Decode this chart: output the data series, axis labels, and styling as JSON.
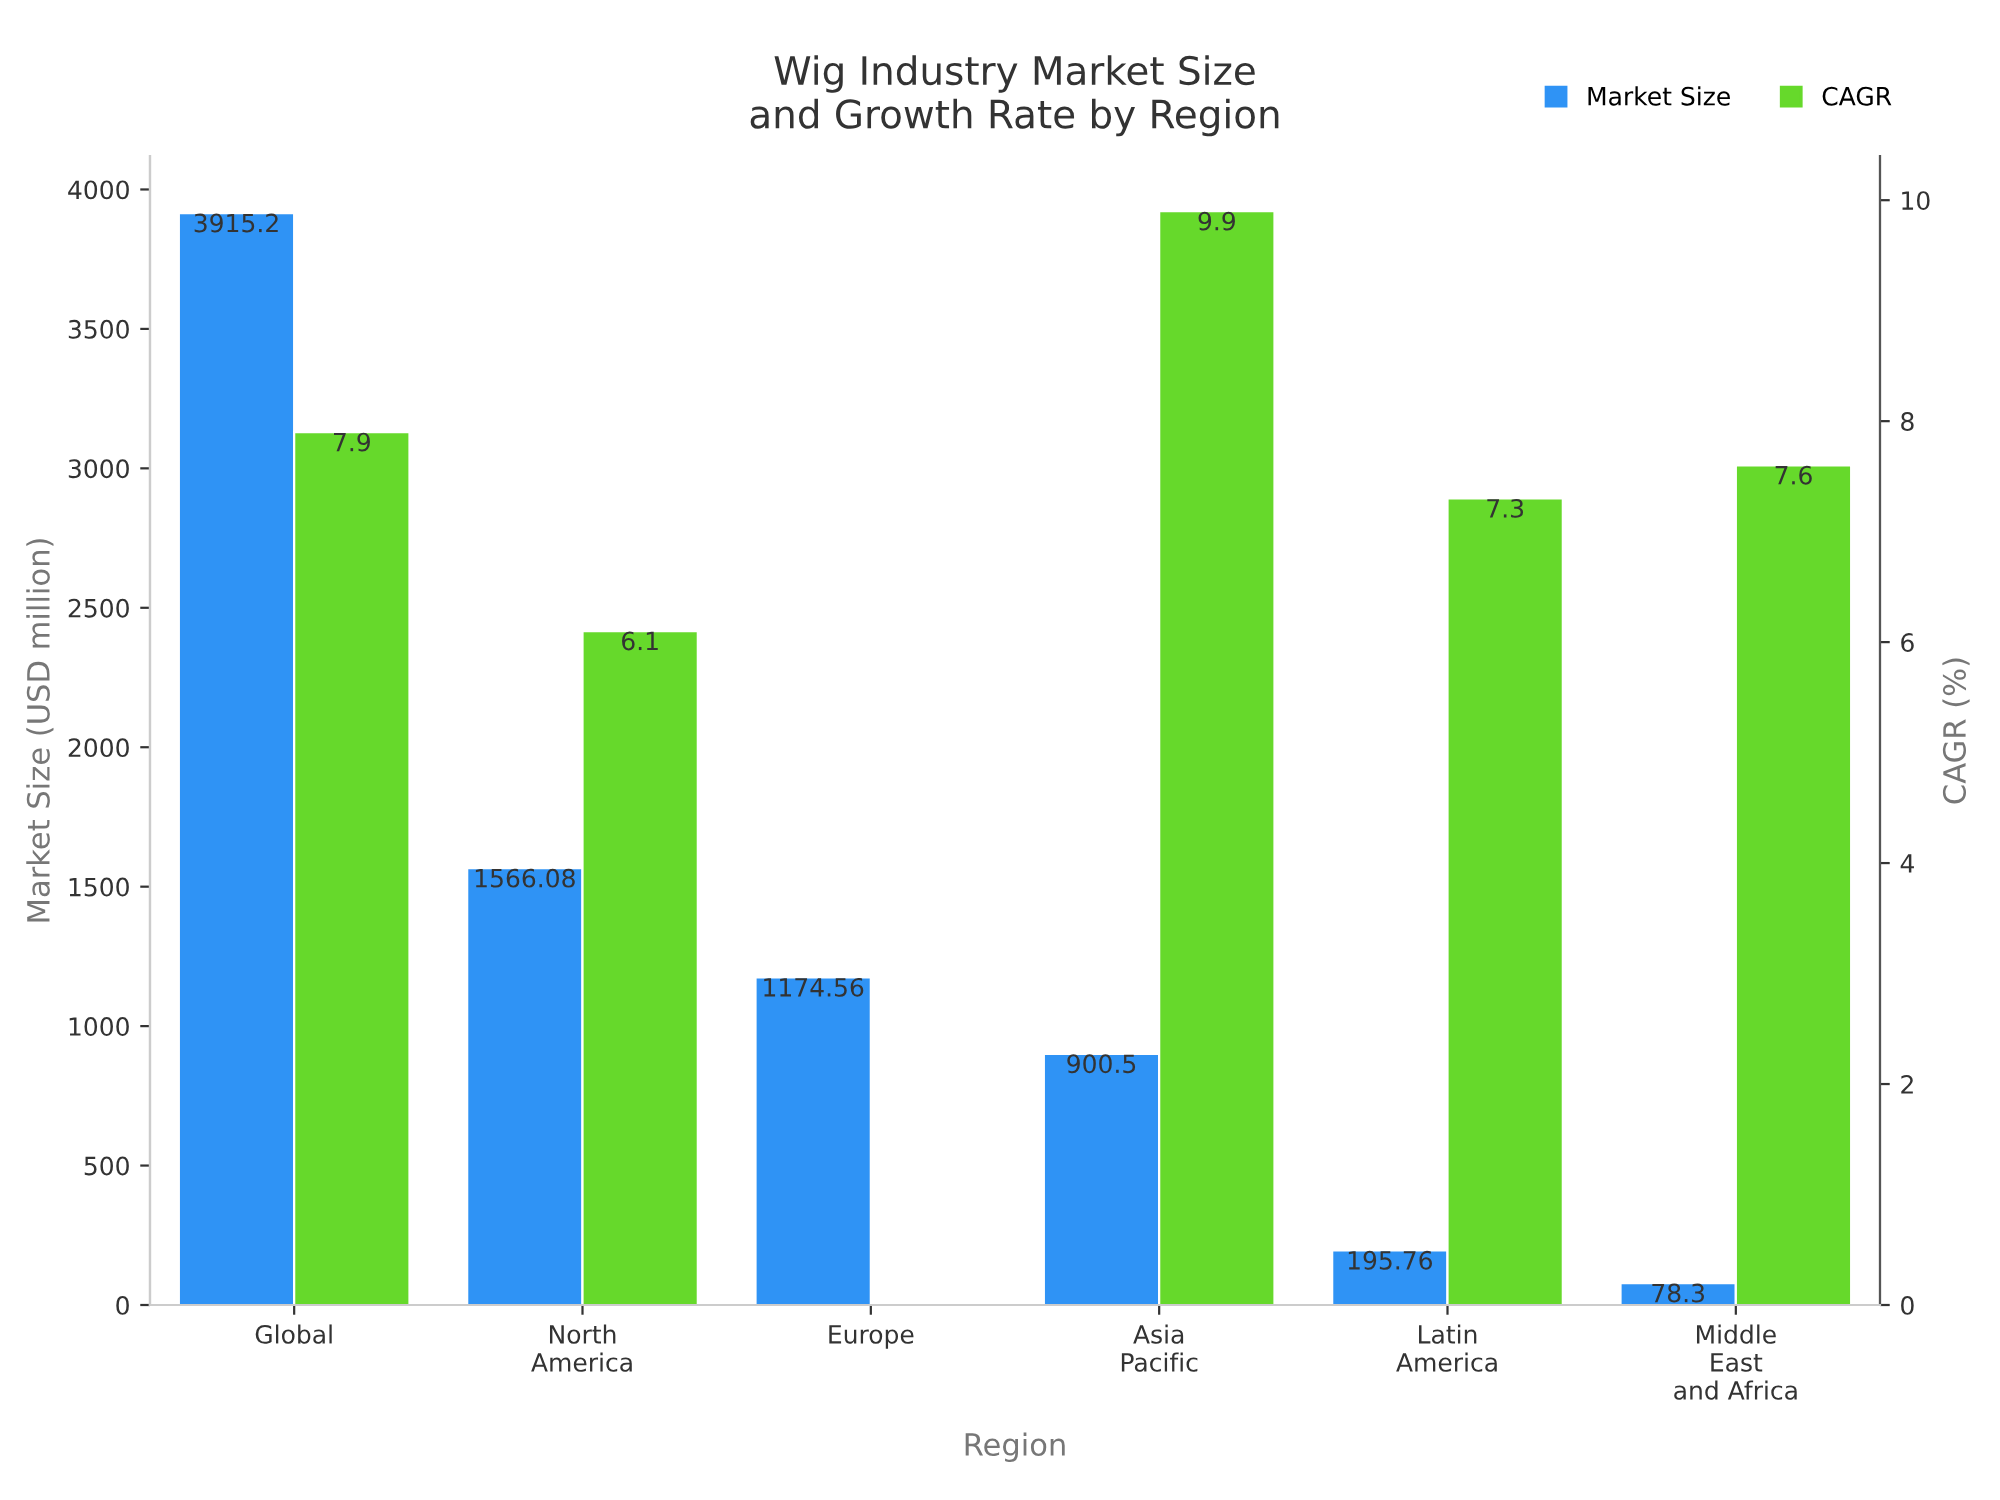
{
  "chart_data": {
    "type": "bar",
    "title": "Wig Industry Market Size\nand Growth Rate by Region",
    "xlabel": "Region",
    "ylabel": "Market Size (USD million)",
    "y2label": "CAGR (%)",
    "categories": [
      "Global",
      "North\nAmerica",
      "Europe",
      "Asia\nPacific",
      "Latin\nAmerica",
      "Middle\nEast\nand Africa"
    ],
    "series": [
      {
        "name": "Market Size",
        "color": "#2f93f5",
        "values": [
          3915.2,
          1566.08,
          1174.56,
          900.5,
          195.76,
          78.3
        ]
      },
      {
        "name": "CAGR",
        "color": "#66d92b",
        "axis": "y2",
        "values": [
          7.9,
          6.1,
          null,
          9.9,
          7.3,
          7.6
        ]
      }
    ],
    "ylim": [
      0,
      4120
    ],
    "yticks": [
      0,
      500,
      1000,
      1500,
      2000,
      2500,
      3000,
      3500,
      4000
    ],
    "y2lim": [
      0,
      10.4
    ],
    "y2ticks": [
      0,
      2,
      4,
      6,
      8,
      10
    ],
    "data_labels": true,
    "legend": "top right",
    "grid": false
  }
}
